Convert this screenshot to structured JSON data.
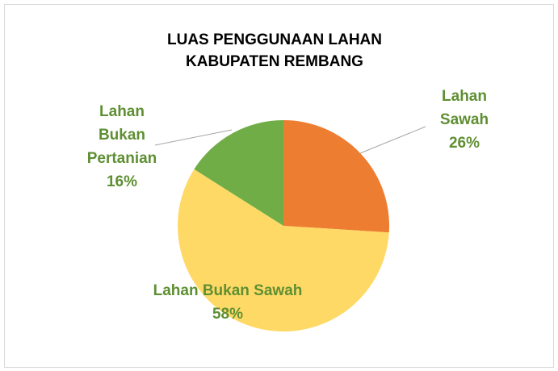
{
  "chart_data": {
    "type": "pie",
    "title": "LUAS PENGGUNAAN LAHAN KABUPATEN REMBANG",
    "categories": [
      "Lahan Sawah",
      "Lahan Bukan Sawah",
      "Lahan Bukan Pertanian"
    ],
    "values": [
      26,
      58,
      16
    ],
    "value_labels": [
      "26%",
      "58%",
      "16%"
    ],
    "colors": [
      "#ED7D31",
      "#FFD966",
      "#70AD47"
    ],
    "label_color": "#5E8F32"
  }
}
